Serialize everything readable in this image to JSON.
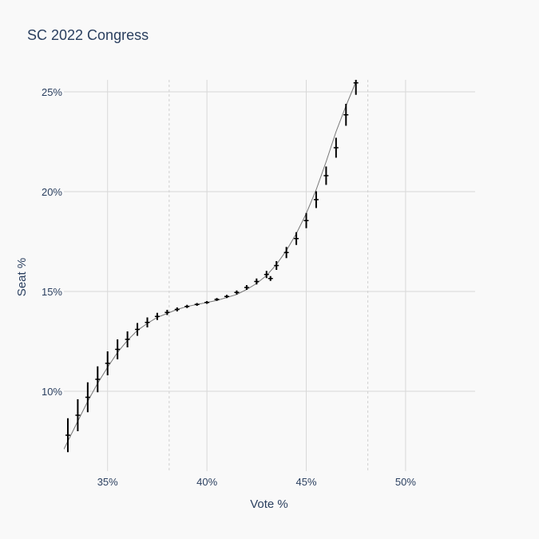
{
  "chart_data": {
    "type": "scatter",
    "title": "SC 2022 Congress",
    "xlabel": "Vote %",
    "ylabel": "Seat %",
    "xlim": [
      32.8,
      53.5
    ],
    "ylim": [
      6.0,
      25.6
    ],
    "x_ticks": [
      {
        "value": 35,
        "label": "35%"
      },
      {
        "value": 40,
        "label": "40%"
      },
      {
        "value": 45,
        "label": "45%"
      },
      {
        "value": 50,
        "label": "50%"
      }
    ],
    "y_ticks": [
      {
        "value": 10,
        "label": "10%"
      },
      {
        "value": 15,
        "label": "15%"
      },
      {
        "value": 20,
        "label": "20%"
      },
      {
        "value": 25,
        "label": "25%"
      }
    ],
    "reference_lines_x": [
      38.1,
      48.1
    ],
    "grid": true,
    "legend": "none",
    "colors": {
      "background": "#f9f9f9",
      "grid": "#d8d8d8",
      "reference": "#d0d0d0",
      "curve": "#777777",
      "markers": "#000000",
      "text": "#2a3f5f"
    },
    "curve": {
      "x": [
        32.8,
        33.5,
        34.0,
        34.5,
        35.0,
        35.5,
        36.0,
        36.5,
        37.0,
        37.5,
        38.0,
        38.5,
        39.0,
        39.5,
        40.0,
        40.5,
        41.0,
        41.5,
        42.0,
        42.5,
        43.0,
        43.5,
        44.0,
        44.5,
        45.0,
        45.5,
        46.0,
        46.5,
        47.0,
        47.5
      ],
      "y": [
        7.1,
        8.5,
        9.5,
        10.4,
        11.2,
        11.95,
        12.55,
        13.05,
        13.4,
        13.7,
        13.9,
        14.1,
        14.25,
        14.35,
        14.45,
        14.55,
        14.7,
        14.85,
        15.1,
        15.4,
        15.8,
        16.35,
        17.05,
        17.9,
        18.9,
        20.1,
        21.5,
        23.0,
        24.3,
        25.5
      ]
    },
    "series": [
      {
        "x": [
          33.0,
          33.5,
          34.0,
          34.5,
          35.0,
          35.5,
          36.0,
          36.5,
          37.0,
          37.5,
          38.0,
          38.5,
          39.0,
          39.5,
          40.0,
          40.5,
          41.0,
          41.5,
          42.0,
          42.5,
          43.0,
          43.2,
          43.5,
          44.0,
          44.5,
          45.0,
          45.5,
          46.0,
          46.5,
          47.0,
          47.5
        ],
        "y": [
          7.8,
          8.8,
          9.7,
          10.6,
          11.4,
          12.1,
          12.6,
          13.1,
          13.45,
          13.75,
          13.95,
          14.1,
          14.25,
          14.35,
          14.45,
          14.6,
          14.75,
          14.95,
          15.2,
          15.5,
          15.85,
          15.65,
          16.3,
          16.95,
          17.65,
          18.55,
          19.6,
          20.8,
          22.2,
          23.85,
          25.45
        ],
        "err": [
          0.85,
          0.8,
          0.75,
          0.65,
          0.6,
          0.5,
          0.4,
          0.32,
          0.25,
          0.18,
          0.13,
          0.1,
          0.08,
          0.07,
          0.07,
          0.07,
          0.08,
          0.1,
          0.12,
          0.15,
          0.18,
          0.12,
          0.22,
          0.28,
          0.32,
          0.38,
          0.42,
          0.46,
          0.5,
          0.55,
          0.6
        ]
      }
    ]
  }
}
